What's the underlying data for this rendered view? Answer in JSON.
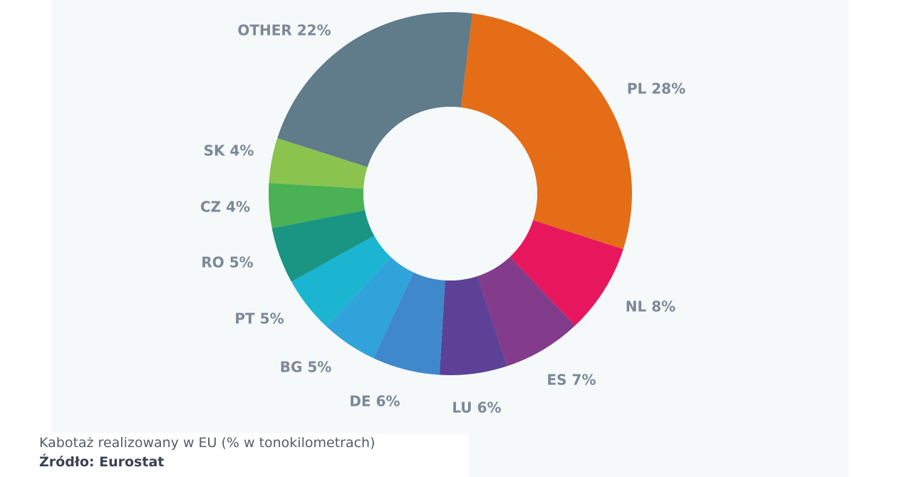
{
  "chart_data": {
    "type": "pie",
    "variant": "donut",
    "slices": [
      {
        "label": "PL 28%",
        "name": "PL",
        "value": 28,
        "color": "#e56d17"
      },
      {
        "label": "NL 8%",
        "name": "NL",
        "value": 8,
        "color": "#e8175d"
      },
      {
        "label": "ES 7%",
        "name": "ES",
        "value": 7,
        "color": "#833b8c"
      },
      {
        "label": "LU 6%",
        "name": "LU",
        "value": 6,
        "color": "#5c4197"
      },
      {
        "label": "DE  6%",
        "name": "DE",
        "value": 6,
        "color": "#3f88cc"
      },
      {
        "label": "BG 5%",
        "name": "BG",
        "value": 5,
        "color": "#30a3db"
      },
      {
        "label": "PT 5%",
        "name": "PT",
        "value": 5,
        "color": "#1bb5d1"
      },
      {
        "label": "RO 5%",
        "name": "RO",
        "value": 5,
        "color": "#1a9584"
      },
      {
        "label": "CZ 4%",
        "name": "CZ",
        "value": 4,
        "color": "#4ab155"
      },
      {
        "label": "SK 4%",
        "name": "SK",
        "value": 4,
        "color": "#8bc34f"
      },
      {
        "label": "OTHER 22%",
        "name": "OTHER",
        "value": 22,
        "color": "#607b89"
      }
    ],
    "label_color": "#7d8899"
  },
  "caption": {
    "title": "Kabotaż realizowany w EU (% w tonokilometrach)",
    "source": "Źródło: Eurostat"
  }
}
